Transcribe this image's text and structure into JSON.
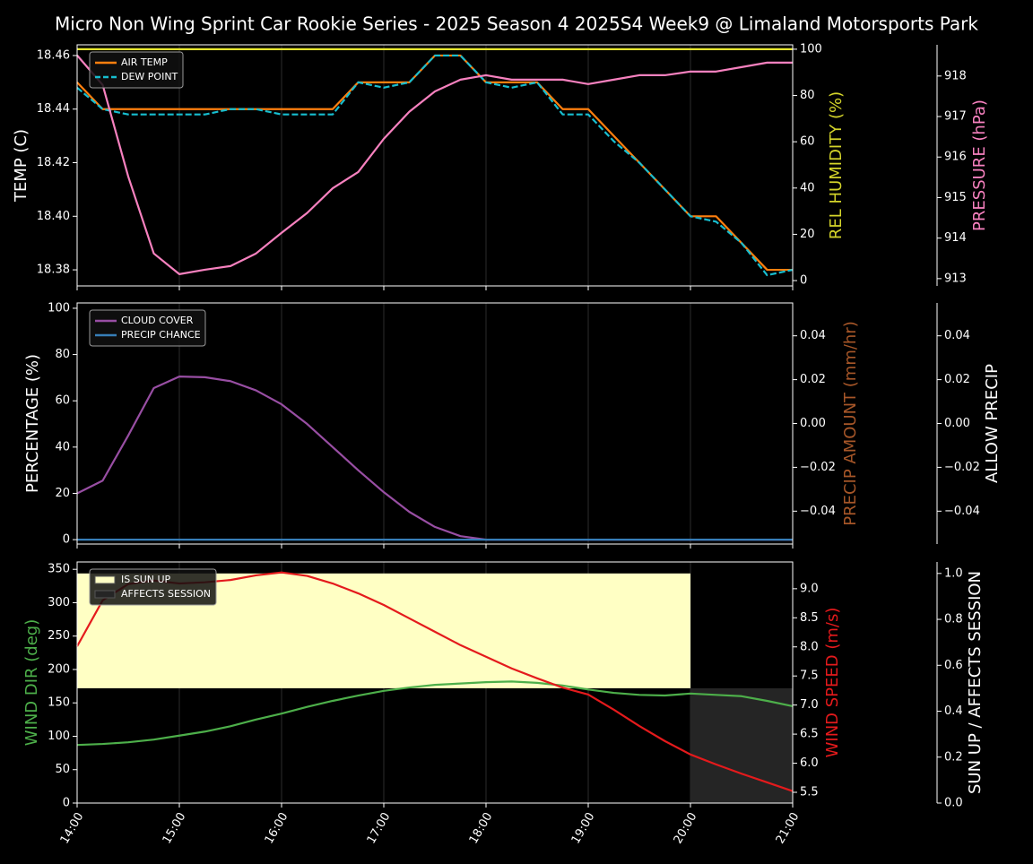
{
  "chart_data": [
    {
      "type": "line",
      "title": "Micro Non Wing Sprint Car Rookie Series - 2025 Season 4 2025S4 Week9 @ Limaland Motorsports Park",
      "grid": true,
      "xlim": [
        14,
        21
      ],
      "x": [
        14,
        14.25,
        14.5,
        14.75,
        15,
        15.25,
        15.5,
        15.75,
        16,
        16.25,
        16.5,
        16.75,
        17,
        17.25,
        17.5,
        17.75,
        18,
        18.25,
        18.5,
        18.75,
        19,
        19.25,
        19.5,
        19.75,
        20,
        20.25,
        20.5,
        20.75,
        21
      ],
      "ylabel": "TEMP (C)",
      "ylabel_color": "#ffffff",
      "ylim": [
        18.374,
        18.464
      ],
      "yticks": [
        18.38,
        {
          "value": 18.4,
          "label": "18.40"
        },
        18.42,
        18.44,
        18.46
      ],
      "y2label": "REL HUMIDITY (%)",
      "y2label_color": "#d4d42a",
      "y2lim": [
        -2.3,
        101.9
      ],
      "y2ticks": [
        0,
        20,
        40,
        60,
        80,
        100
      ],
      "y3label": "PRESSURE (hPa)",
      "y3label_color": "#f781bf",
      "y3lim": [
        912.82,
        918.77
      ],
      "y3ticks": [
        913,
        914,
        915,
        916,
        917,
        918
      ],
      "series": [
        {
          "name": "AIR TEMP",
          "color": "#ff7f0e",
          "axis": "y",
          "values": [
            18.45,
            18.44,
            18.44,
            18.44,
            18.44,
            18.44,
            18.44,
            18.44,
            18.44,
            18.44,
            18.44,
            18.45,
            18.45,
            18.45,
            18.46,
            18.46,
            18.45,
            18.45,
            18.45,
            18.44,
            18.44,
            18.43,
            18.42,
            18.41,
            18.4,
            18.4,
            18.39,
            18.38,
            18.38
          ]
        },
        {
          "name": "DEW POINT",
          "color": "#17becf",
          "dashed": true,
          "axis": "y",
          "values": [
            18.448,
            18.44,
            18.438,
            18.438,
            18.438,
            18.438,
            18.44,
            18.44,
            18.438,
            18.438,
            18.438,
            18.45,
            18.448,
            18.45,
            18.46,
            18.46,
            18.45,
            18.448,
            18.45,
            18.438,
            18.438,
            18.428,
            18.42,
            18.41,
            18.4,
            18.398,
            18.39,
            18.378,
            18.38
          ]
        },
        {
          "color": "#e5e52e",
          "axis": "y2",
          "values": [
            100,
            100,
            100,
            100,
            100,
            100,
            100,
            100,
            100,
            100,
            100,
            100,
            100,
            100,
            100,
            100,
            100,
            100,
            100,
            100,
            100,
            100,
            100,
            100,
            100,
            100,
            100,
            100,
            100
          ]
        },
        {
          "color": "#f781bf",
          "axis": "y3",
          "values": [
            918.51,
            917.78,
            915.52,
            913.62,
            913.11,
            913.22,
            913.31,
            913.62,
            914.13,
            914.62,
            915.23,
            915.63,
            916.45,
            917.12,
            917.62,
            917.91,
            918.02,
            917.91,
            917.91,
            917.91,
            917.8,
            917.91,
            918.02,
            918.02,
            918.11,
            918.11,
            918.22,
            918.33,
            918.33
          ]
        }
      ]
    },
    {
      "type": "line",
      "grid": true,
      "xlim": [
        14,
        21
      ],
      "x": [
        14,
        14.25,
        14.5,
        14.75,
        15,
        15.25,
        15.5,
        15.75,
        16,
        16.25,
        16.5,
        16.75,
        17,
        17.25,
        17.5,
        17.75,
        18,
        18.25,
        18.5,
        18.75,
        19,
        19.25,
        19.5,
        19.75,
        20,
        20.25,
        20.5,
        20.75,
        21
      ],
      "ylabel": "PERCENTAGE (%)",
      "ylabel_color": "#ffffff",
      "ylim": [
        -1.9,
        102.3
      ],
      "yticks": [
        0,
        20,
        40,
        60,
        80,
        100
      ],
      "y2label": "PRECIP AMOUNT (mm/hr)",
      "y2label_color": "#a65628",
      "y2lim": [
        -0.055,
        0.055
      ],
      "y2ticks": [
        {
          "value": -0.04,
          "label": "−0.04"
        },
        {
          "value": -0.02,
          "label": "−0.02"
        },
        {
          "value": 0,
          "label": "0.00"
        },
        0.02,
        0.04
      ],
      "y3label": "ALLOW PRECIP",
      "y3label_color": "#ffffff",
      "y3lim": [
        -0.055,
        0.055
      ],
      "y3ticks": [
        {
          "value": -0.04,
          "label": "−0.04"
        },
        {
          "value": -0.02,
          "label": "−0.02"
        },
        {
          "value": 0,
          "label": "0.00"
        },
        0.02,
        0.04
      ],
      "series": [
        {
          "name": "CLOUD COVER",
          "color": "#984ea3",
          "axis": "y",
          "values": [
            20,
            25.5,
            45,
            65.5,
            70.5,
            70.2,
            68.5,
            64.5,
            58.5,
            50,
            40,
            30,
            20.5,
            12,
            5.5,
            1.5,
            0,
            0,
            0,
            0,
            0,
            0,
            0,
            0,
            0,
            0,
            0,
            0,
            0
          ]
        },
        {
          "name": "PRECIP CHANCE",
          "color": "#377eb8",
          "axis": "y",
          "values": [
            0,
            0,
            0,
            0,
            0,
            0,
            0,
            0,
            0,
            0,
            0,
            0,
            0,
            0,
            0,
            0,
            0,
            0,
            0,
            0,
            0,
            0,
            0,
            0,
            0,
            0,
            0,
            0,
            0
          ]
        }
      ]
    },
    {
      "type": "line",
      "grid": true,
      "xlim": [
        14,
        21
      ],
      "xticks": [
        {
          "value": 14,
          "label": "14:00"
        },
        {
          "value": 15,
          "label": "15:00"
        },
        {
          "value": 16,
          "label": "16:00"
        },
        {
          "value": 17,
          "label": "17:00"
        },
        {
          "value": 18,
          "label": "18:00"
        },
        {
          "value": 19,
          "label": "19:00"
        },
        {
          "value": 20,
          "label": "20:00"
        },
        {
          "value": 21,
          "label": "21:00"
        }
      ],
      "x": [
        14,
        14.25,
        14.5,
        14.75,
        15,
        15.25,
        15.5,
        15.75,
        16,
        16.25,
        16.5,
        16.75,
        17,
        17.25,
        17.5,
        17.75,
        18,
        18.25,
        18.5,
        18.75,
        19,
        19.25,
        19.5,
        19.75,
        20,
        20.25,
        20.5,
        20.75,
        21
      ],
      "ylabel": "WIND DIR (deg)",
      "ylabel_color": "#4daf4a",
      "ylim": [
        0,
        361
      ],
      "yticks": [
        0,
        50,
        100,
        150,
        200,
        250,
        300,
        350
      ],
      "y2label": "WIND SPEED (m/s)",
      "y2label_color": "#e41a1c",
      "y2lim": [
        5.315,
        9.46
      ],
      "y2ticks": [
        5.5,
        {
          "value": 6,
          "label": "6.0"
        },
        6.5,
        {
          "value": 7,
          "label": "7.0"
        },
        7.5,
        {
          "value": 8,
          "label": "8.0"
        },
        8.5,
        {
          "value": 9,
          "label": "9.0"
        }
      ],
      "y3label": "SUN UP / AFFECTS SESSION",
      "y3label_color": "#ffffff",
      "y3lim": [
        0,
        1.05
      ],
      "y3ticks": [
        {
          "value": 0,
          "label": "0.0"
        },
        0.2,
        0.4,
        0.6,
        0.8,
        {
          "value": 1,
          "label": "1.0"
        }
      ],
      "spans": [
        {
          "name": "IS SUN UP",
          "color": "#ffffc4",
          "axis": "y3",
          "bottom": 0.5,
          "bins": [
            14,
            15,
            16,
            17,
            18,
            19,
            20,
            21
          ],
          "values": [
            1,
            1,
            1,
            1,
            1,
            1,
            null
          ]
        },
        {
          "name": "AFFECTS SESSION",
          "color": "#252525",
          "axis": "y3",
          "bottom": 0,
          "bins": [
            14,
            15,
            16,
            17,
            18,
            19,
            20,
            21
          ],
          "values": [
            null,
            null,
            null,
            null,
            null,
            null,
            0.5
          ]
        }
      ],
      "series": [
        {
          "color": "#4daf4a",
          "axis": "y",
          "values": [
            87,
            88.5,
            91,
            95,
            101,
            107,
            115,
            125,
            134,
            144,
            153,
            161,
            168,
            173,
            177,
            179,
            181,
            182,
            180,
            176,
            170,
            165,
            162,
            161,
            164,
            162,
            160,
            153,
            145
          ]
        },
        {
          "color": "#e41a1c",
          "axis": "y2",
          "values": [
            8.01,
            8.8,
            9.08,
            9.14,
            9.09,
            9.11,
            9.15,
            9.23,
            9.28,
            9.22,
            9.09,
            8.92,
            8.72,
            8.49,
            8.26,
            8.03,
            7.83,
            7.63,
            7.46,
            7.3,
            7.18,
            6.92,
            6.64,
            6.38,
            6.15,
            5.98,
            5.82,
            5.67,
            5.52
          ]
        }
      ]
    }
  ]
}
